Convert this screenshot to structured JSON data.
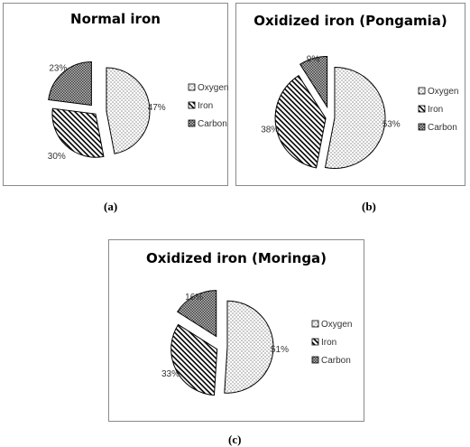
{
  "charts": [
    {
      "caption": "(a)",
      "title": "Normal iron",
      "legend": [
        "Oxygen",
        "Iron",
        "Carbon"
      ],
      "labels": [
        "47%",
        "30%",
        "23%"
      ]
    },
    {
      "caption": "(b)",
      "title": "Oxidized iron (Pongamia)",
      "legend": [
        "Oxygen",
        "Iron",
        "Carbon"
      ],
      "labels": [
        "53%",
        "38%",
        "9%"
      ]
    },
    {
      "caption": "(c)",
      "title": "Oxidized iron (Moringa)",
      "legend": [
        "Oxygen",
        "Iron",
        "Carbon"
      ],
      "labels": [
        "51%",
        "33%",
        "16%"
      ]
    }
  ],
  "chart_data": [
    {
      "type": "pie",
      "title": "Normal iron",
      "categories": [
        "Oxygen",
        "Iron",
        "Carbon"
      ],
      "values": [
        47,
        30,
        23
      ],
      "value_labels": [
        "47%",
        "30%",
        "23%"
      ],
      "exploded": true,
      "legend_position": "right",
      "patterns": [
        "dots",
        "diagonal-hatch",
        "crosshatch"
      ]
    },
    {
      "type": "pie",
      "title": "Oxidized iron (Pongamia)",
      "categories": [
        "Oxygen",
        "Iron",
        "Carbon"
      ],
      "values": [
        53,
        38,
        9
      ],
      "value_labels": [
        "53%",
        "38%",
        "9%"
      ],
      "exploded": true,
      "legend_position": "right",
      "patterns": [
        "dots",
        "diagonal-hatch",
        "crosshatch"
      ]
    },
    {
      "type": "pie",
      "title": "Oxidized iron (Moringa)",
      "categories": [
        "Oxygen",
        "Iron",
        "Carbon"
      ],
      "values": [
        51,
        33,
        16
      ],
      "value_labels": [
        "51%",
        "33%",
        "16%"
      ],
      "exploded": true,
      "legend_position": "right",
      "patterns": [
        "dots",
        "diagonal-hatch",
        "crosshatch"
      ]
    }
  ]
}
